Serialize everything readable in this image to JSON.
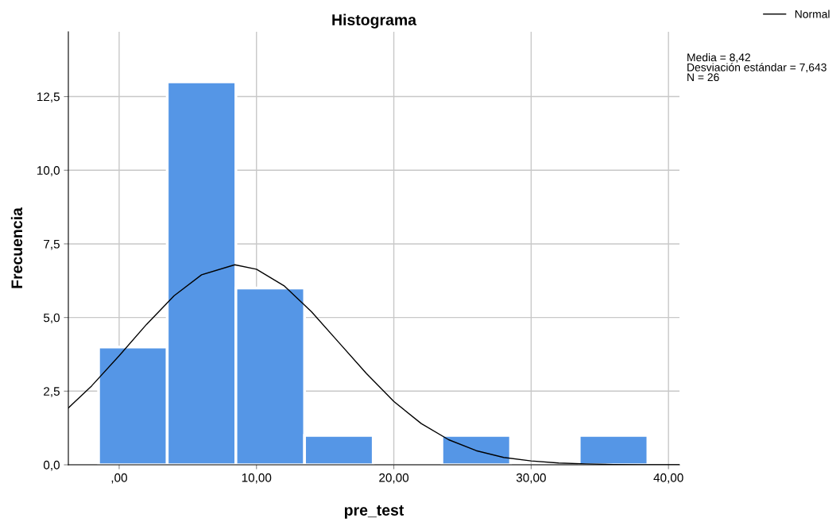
{
  "chart_data": {
    "type": "histogram",
    "title": "Histograma",
    "xlabel": "pre_test",
    "ylabel": "Frecuencia",
    "bins": [
      -1.5,
      3.5,
      8.5,
      13.5,
      18.5,
      23.5,
      28.5,
      33.5,
      38.5
    ],
    "series": [
      {
        "color": "#5596e6",
        "values": [
          4,
          13,
          6,
          1,
          0,
          1,
          0,
          1
        ]
      },
      {
        "type": "line",
        "name": "Normal",
        "color": "#000000",
        "x": [
          -3.7,
          -2,
          0,
          2,
          4,
          6,
          8.42,
          10,
          12,
          14,
          16,
          18,
          20,
          22,
          24,
          26,
          28,
          30,
          32,
          34,
          36,
          38,
          40.8
        ],
        "values": [
          1.93,
          2.68,
          3.7,
          4.77,
          5.74,
          6.45,
          6.79,
          6.64,
          6.08,
          5.2,
          4.15,
          3.1,
          2.15,
          1.4,
          0.85,
          0.48,
          0.25,
          0.13,
          0.06,
          0.03,
          0.01,
          0.0,
          0.0
        ]
      }
    ],
    "xlim": [
      -3.7,
      40.8
    ],
    "ylim": [
      0,
      14.7
    ],
    "xticks": [
      {
        "value": 0,
        "label": ",00"
      },
      {
        "value": 10,
        "label": "10,00"
      },
      {
        "value": 20,
        "label": "20,00"
      },
      {
        "value": 30,
        "label": "30,00"
      },
      {
        "value": 40,
        "label": "40,00"
      }
    ],
    "yticks": [
      {
        "value": 0,
        "label": "0,0"
      },
      {
        "value": 2.5,
        "label": "2,5"
      },
      {
        "value": 5,
        "label": "5,0"
      },
      {
        "value": 7.5,
        "label": "7,5"
      },
      {
        "value": 10,
        "label": "10,0"
      },
      {
        "value": 12.5,
        "label": "12,5"
      }
    ],
    "grid": true,
    "legend": "top right",
    "annotations": [
      "Media = 8,42\nDesviación estándar = 7,643\nN = 26"
    ]
  }
}
